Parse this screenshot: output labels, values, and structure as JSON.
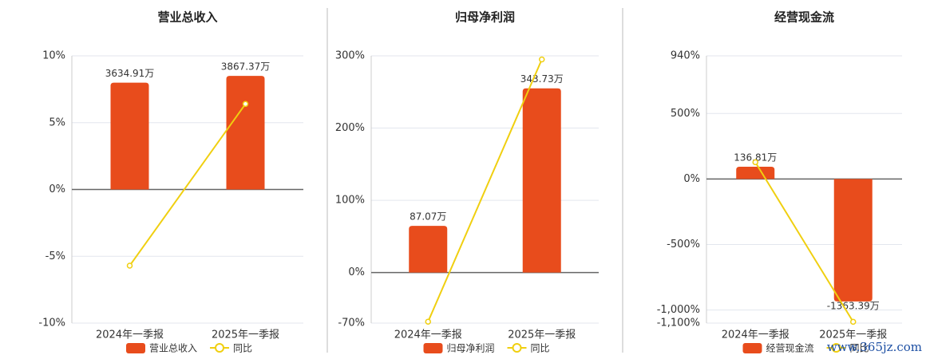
{
  "chart_data": [
    {
      "type": "bar",
      "title": "营业总收入",
      "categories": [
        "2024年一季报",
        "2025年一季报"
      ],
      "series": [
        {
          "name": "营业总收入",
          "type": "bar",
          "color": "#e84c1c",
          "values": [
            3634.91,
            3867.37
          ],
          "value_labels": [
            "3634.91万",
            "3867.37万"
          ]
        },
        {
          "name": "同比",
          "type": "line",
          "color": "#f0cf10",
          "values": [
            -5.7,
            6.4
          ]
        }
      ],
      "ylim": [
        -10,
        10
      ],
      "yticks": [
        {
          "value": -10,
          "label": "-10%"
        },
        {
          "value": -5,
          "label": "-5%"
        },
        {
          "value": 0,
          "label": "0%"
        },
        {
          "value": 5,
          "label": "5%"
        },
        {
          "value": 10,
          "label": "10%"
        }
      ],
      "grid": true
    },
    {
      "type": "bar",
      "title": "归母净利润",
      "categories": [
        "2024年一季报",
        "2025年一季报"
      ],
      "series": [
        {
          "name": "归母净利润",
          "type": "bar",
          "color": "#e84c1c",
          "values": [
            87.07,
            343.73
          ],
          "value_labels": [
            "87.07万",
            "343.73万"
          ]
        },
        {
          "name": "同比",
          "type": "line",
          "color": "#f0cf10",
          "values": [
            -68,
            295
          ]
        }
      ],
      "ylim": [
        -70,
        300
      ],
      "yticks": [
        {
          "value": -70,
          "label": "-70%"
        },
        {
          "value": 0,
          "label": "0%"
        },
        {
          "value": 100,
          "label": "100%"
        },
        {
          "value": 200,
          "label": "200%"
        },
        {
          "value": 300,
          "label": "300%"
        }
      ],
      "grid": true
    },
    {
      "type": "bar",
      "title": "经营现金流",
      "categories": [
        "2024年一季报",
        "2025年一季报"
      ],
      "series": [
        {
          "name": "经营现金流",
          "type": "bar",
          "color": "#e84c1c",
          "values": [
            136.81,
            -1363.39
          ],
          "value_labels": [
            "136.81万",
            "-1363.39万"
          ]
        },
        {
          "name": "同比",
          "type": "line",
          "color": "#f0cf10",
          "values": [
            128,
            -1090
          ]
        }
      ],
      "ylim": [
        -1100,
        940
      ],
      "yticks": [
        {
          "value": -1100,
          "label": "-1,100%"
        },
        {
          "value": -1000,
          "label": "-1,000%"
        },
        {
          "value": -500,
          "label": "-500%"
        },
        {
          "value": 0,
          "label": "0%"
        },
        {
          "value": 500,
          "label": "500%"
        },
        {
          "value": 940,
          "label": "940%"
        }
      ],
      "grid": true
    }
  ],
  "watermark": "www.365jz.com"
}
